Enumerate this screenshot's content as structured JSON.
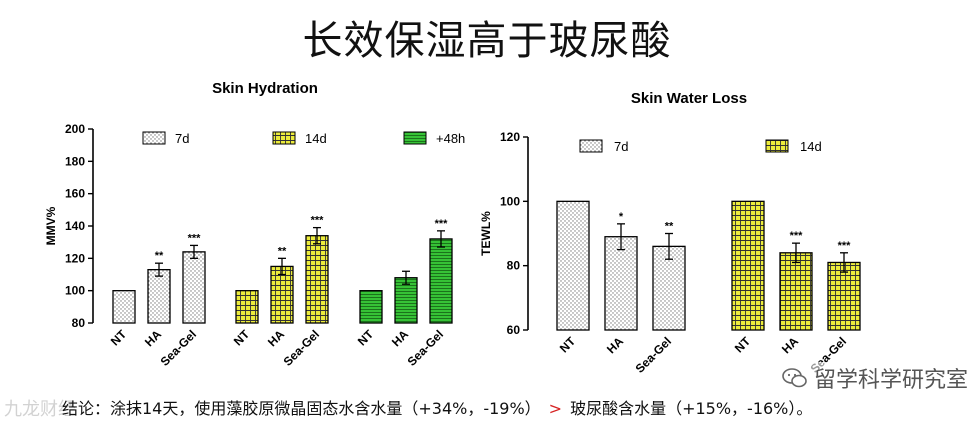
{
  "title": "长效保湿高于玻尿酸",
  "conclusion": {
    "prefix": "结论：涂抹14天，使用藻胶原微晶固态水含水量（+34%，-19%）",
    "gt": ">",
    "suffix": "玻尿酸含水量（+15%，-16%）。"
  },
  "watermark_left": "九龙财经",
  "watermark_right": "留学科学研究室",
  "colors": {
    "yellow": "#ecec3c",
    "green": "#36c236",
    "white": "#ffffff"
  },
  "chart_data": [
    {
      "type": "bar",
      "title": "Skin Hydration",
      "ylabel": "MMV%",
      "ylim": [
        80,
        200
      ],
      "yticks": [
        80,
        100,
        120,
        140,
        160,
        180,
        200
      ],
      "categories": [
        "NT",
        "HA",
        "Sea-Gel"
      ],
      "legend": [
        {
          "name": "7d",
          "pattern": "dots"
        },
        {
          "name": "14d",
          "pattern": "grid"
        },
        {
          "name": "+48h",
          "pattern": "hlines"
        }
      ],
      "groups": [
        {
          "series": "7d",
          "pattern": "dots",
          "bars": [
            {
              "category": "NT",
              "value": 100,
              "error": 0,
              "sig": ""
            },
            {
              "category": "HA",
              "value": 113,
              "error": 4,
              "sig": "**"
            },
            {
              "category": "Sea-Gel",
              "value": 124,
              "error": 4,
              "sig": "***"
            }
          ]
        },
        {
          "series": "14d",
          "pattern": "grid",
          "bars": [
            {
              "category": "NT",
              "value": 100,
              "error": 0,
              "sig": ""
            },
            {
              "category": "HA",
              "value": 115,
              "error": 5,
              "sig": "**"
            },
            {
              "category": "Sea-Gel",
              "value": 134,
              "error": 5,
              "sig": "***"
            }
          ]
        },
        {
          "series": "+48h",
          "pattern": "hlines",
          "bars": [
            {
              "category": "NT",
              "value": 100,
              "error": 0,
              "sig": ""
            },
            {
              "category": "HA",
              "value": 108,
              "error": 4,
              "sig": ""
            },
            {
              "category": "Sea-Gel",
              "value": 132,
              "error": 5,
              "sig": "***"
            }
          ]
        }
      ]
    },
    {
      "type": "bar",
      "title": "Skin Water Loss",
      "ylabel": "TEWL%",
      "ylim": [
        60,
        120
      ],
      "yticks": [
        60,
        80,
        100,
        120
      ],
      "categories": [
        "NT",
        "HA",
        "Sea-Gel"
      ],
      "legend": [
        {
          "name": "7d",
          "pattern": "dots"
        },
        {
          "name": "14d",
          "pattern": "grid"
        }
      ],
      "groups": [
        {
          "series": "7d",
          "pattern": "dots",
          "bars": [
            {
              "category": "NT",
              "value": 100,
              "error": 0,
              "sig": ""
            },
            {
              "category": "HA",
              "value": 89,
              "error": 4,
              "sig": "*"
            },
            {
              "category": "Sea-Gel",
              "value": 86,
              "error": 4,
              "sig": "**"
            }
          ]
        },
        {
          "series": "14d",
          "pattern": "grid",
          "bars": [
            {
              "category": "NT",
              "value": 100,
              "error": 0,
              "sig": ""
            },
            {
              "category": "HA",
              "value": 84,
              "error": 3,
              "sig": "***"
            },
            {
              "category": "Sea-Gel",
              "value": 81,
              "error": 3,
              "sig": "***"
            }
          ]
        }
      ]
    }
  ]
}
